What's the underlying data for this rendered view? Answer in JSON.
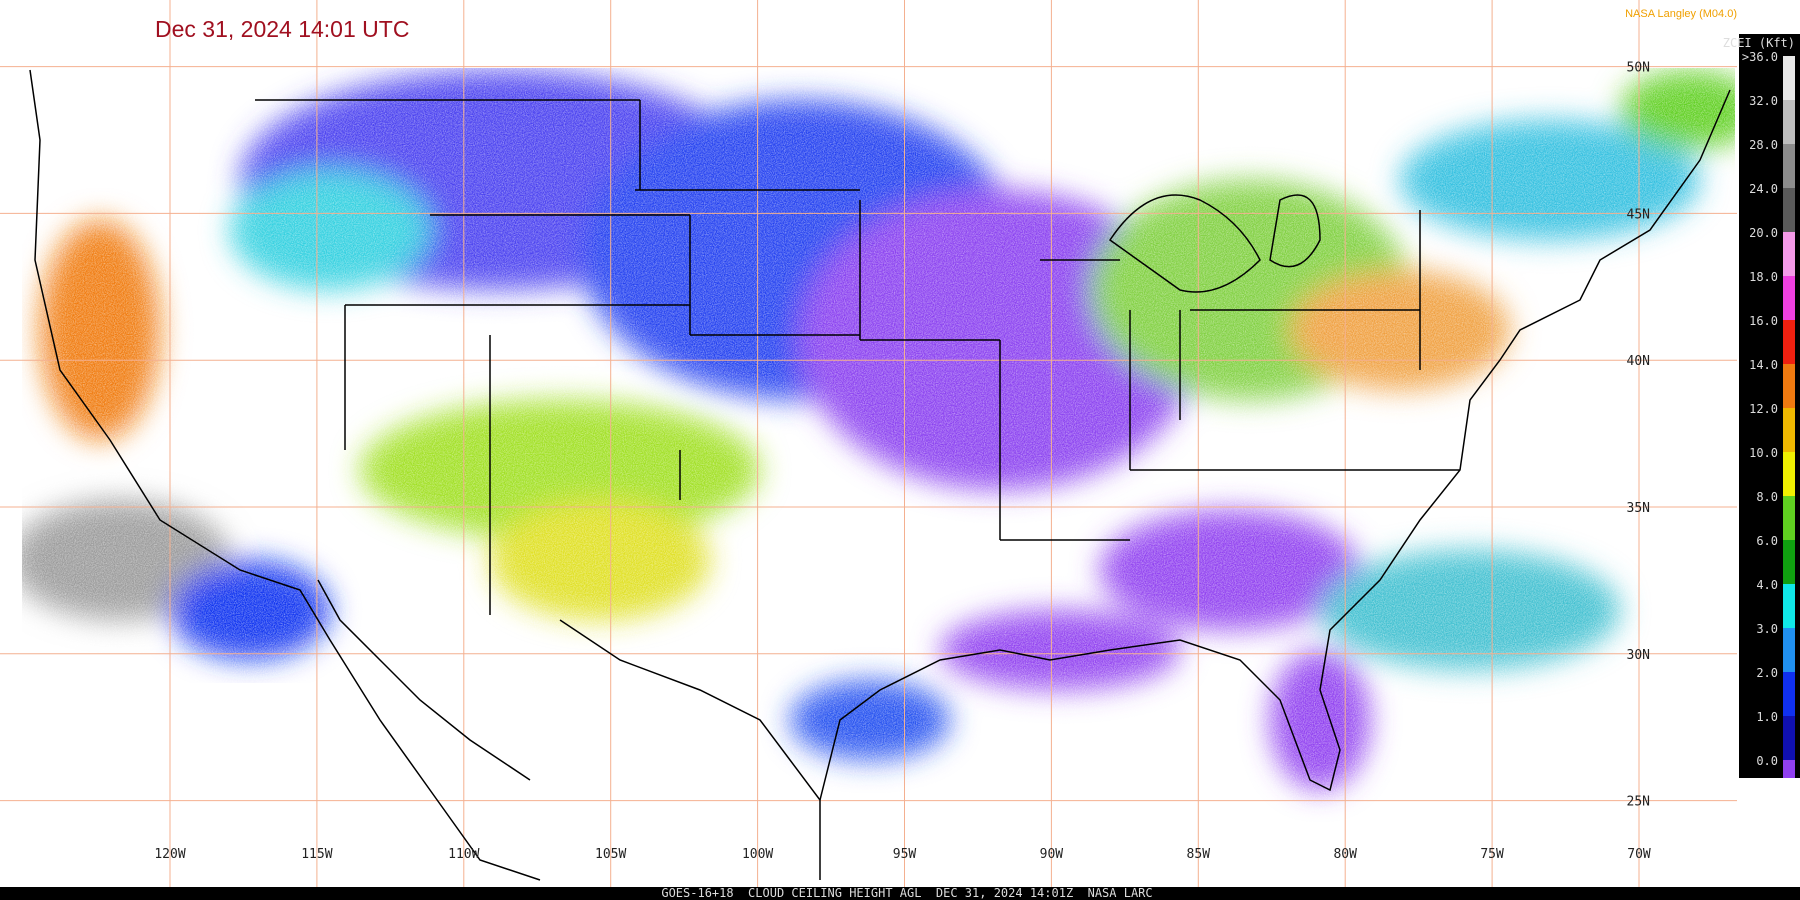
{
  "header": {
    "title": "Dec 31, 2024 14:01 UTC",
    "credit": "NASA Langley (M04.0)"
  },
  "legend": {
    "title": "ZCEI (Kft)",
    "items": [
      {
        "label": ">36.0",
        "color": "#e8e8e8"
      },
      {
        "label": "32.0",
        "color": "#bdbdbd"
      },
      {
        "label": "28.0",
        "color": "#8c8c8c"
      },
      {
        "label": "24.0",
        "color": "#5a5a5a"
      },
      {
        "label": "20.0",
        "color": "#f59ae8"
      },
      {
        "label": "18.0",
        "color": "#f040e0"
      },
      {
        "label": "16.0",
        "color": "#f02010"
      },
      {
        "label": "14.0",
        "color": "#f07a10"
      },
      {
        "label": "12.0",
        "color": "#f0b800"
      },
      {
        "label": "10.0",
        "color": "#f0f000"
      },
      {
        "label": "8.0",
        "color": "#60d020"
      },
      {
        "label": "6.0",
        "color": "#10a010"
      },
      {
        "label": "4.0",
        "color": "#10e8e8"
      },
      {
        "label": "3.0",
        "color": "#2090f0"
      },
      {
        "label": "2.0",
        "color": "#1030f0"
      },
      {
        "label": "1.0",
        "color": "#1010b0"
      },
      {
        "label": "0.0",
        "color": "#9040f0"
      }
    ]
  },
  "latitudes": [
    "50N",
    "45N",
    "40N",
    "35N",
    "30N",
    "25N"
  ],
  "longitudes": [
    "120W",
    "115W",
    "110W",
    "105W",
    "100W",
    "95W",
    "90W",
    "85W",
    "80W",
    "75W",
    "70W"
  ],
  "footer": "GOES-16+18  CLOUD CEILING HEIGHT AGL  DEC 31, 2024 14:01Z  NASA LARC"
}
